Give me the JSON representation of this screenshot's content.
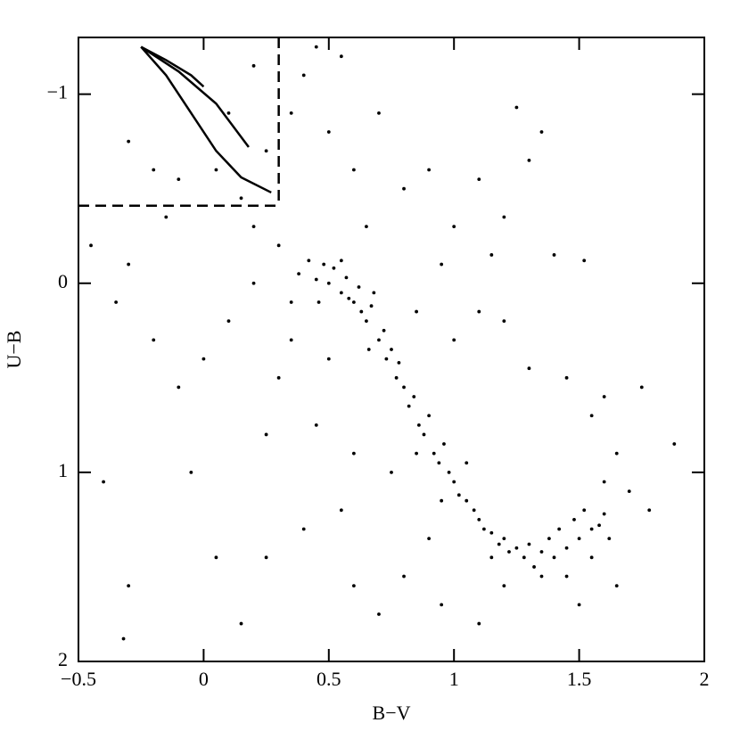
{
  "chart_data": {
    "type": "scatter",
    "x_label": "B−V",
    "y_label": "U−B",
    "xlim": [
      -0.5,
      2
    ],
    "ylim": [
      -1.3,
      2
    ],
    "y_inverted": true,
    "xticks": [
      {
        "value": -0.5,
        "label": "−0.5"
      },
      0,
      0.5,
      1,
      1.5,
      2
    ],
    "yticks": [
      {
        "value": -1,
        "label": "−1"
      },
      0,
      1,
      2
    ],
    "series": [
      {
        "color": "#000000",
        "x": [
          0.38,
          0.42,
          0.45,
          0.48,
          0.5,
          0.52,
          0.55,
          0.57,
          0.6,
          0.62,
          0.63,
          0.65,
          0.67,
          0.7,
          0.72,
          0.73,
          0.75,
          0.77,
          0.8,
          0.82,
          0.84,
          0.86,
          0.88,
          0.9,
          0.92,
          0.94,
          0.96,
          0.98,
          1.0,
          1.02,
          1.05,
          1.08,
          1.1,
          1.12,
          1.15,
          1.18,
          1.2,
          1.22,
          1.25,
          1.28,
          1.3,
          1.32,
          1.35,
          1.38,
          1.4,
          1.42,
          1.45,
          1.48,
          1.5,
          1.52,
          1.55,
          1.58,
          1.6,
          1.62,
          0.55,
          0.58,
          0.68,
          0.78,
          0.85,
          1.05,
          1.15,
          1.35,
          1.45,
          1.55,
          0.46,
          0.66,
          0.95
        ],
        "values": [
          -0.05,
          -0.12,
          -0.02,
          -0.1,
          0.0,
          -0.08,
          0.05,
          -0.03,
          0.1,
          0.02,
          0.15,
          0.2,
          0.12,
          0.3,
          0.25,
          0.4,
          0.35,
          0.5,
          0.55,
          0.65,
          0.6,
          0.75,
          0.8,
          0.7,
          0.9,
          0.95,
          0.85,
          1.0,
          1.05,
          1.12,
          1.15,
          1.2,
          1.25,
          1.3,
          1.32,
          1.38,
          1.35,
          1.42,
          1.4,
          1.45,
          1.38,
          1.5,
          1.42,
          1.35,
          1.45,
          1.3,
          1.4,
          1.25,
          1.35,
          1.2,
          1.3,
          1.28,
          1.22,
          1.35,
          -0.12,
          0.08,
          0.05,
          0.42,
          0.9,
          0.95,
          1.45,
          1.55,
          1.55,
          1.45,
          0.1,
          0.35,
          1.15
        ]
      },
      {
        "color": "#000000",
        "x": [
          -0.3,
          -0.2,
          -0.1,
          0.05,
          0.15,
          0.25,
          0.35,
          0.4,
          0.5,
          0.6,
          0.7,
          0.8,
          0.9,
          1.0,
          1.1,
          1.2,
          1.3,
          1.25,
          1.35,
          0.45,
          0.55,
          0.2,
          0.1,
          -0.45,
          -0.35,
          -0.3,
          -0.2,
          -0.1,
          0.0,
          0.1,
          0.2,
          0.3,
          0.35,
          0.25,
          -0.05,
          -0.4,
          -0.3,
          -0.32,
          0.05,
          0.15,
          0.25,
          0.4,
          0.55,
          0.6,
          0.7,
          0.8,
          0.95,
          1.1,
          1.2,
          1.5,
          1.65,
          1.7,
          1.78,
          1.88,
          1.55,
          1.45,
          1.6,
          1.3,
          1.2,
          1.1,
          1.0,
          1.4,
          1.52,
          1.15,
          0.95,
          0.85,
          0.5,
          0.45,
          0.35,
          0.6,
          0.75,
          0.9,
          1.6,
          0.65,
          0.2,
          -0.15,
          0.3,
          1.65,
          1.75
        ],
        "values": [
          -0.75,
          -0.6,
          -0.55,
          -0.6,
          -0.45,
          -0.7,
          -0.9,
          -1.1,
          -0.8,
          -0.6,
          -0.9,
          -0.5,
          -0.6,
          -0.3,
          -0.55,
          -0.35,
          -0.65,
          -0.93,
          -0.8,
          -1.25,
          -1.2,
          -1.15,
          -0.9,
          -0.2,
          0.1,
          -0.1,
          0.3,
          0.55,
          0.4,
          0.2,
          0.0,
          0.5,
          0.3,
          0.8,
          1.0,
          1.05,
          1.6,
          1.88,
          1.45,
          1.8,
          1.45,
          1.3,
          1.2,
          1.6,
          1.75,
          1.55,
          1.7,
          1.8,
          1.6,
          1.7,
          1.6,
          1.1,
          1.2,
          0.85,
          0.7,
          0.5,
          0.6,
          0.45,
          0.2,
          0.15,
          0.3,
          -0.15,
          -0.12,
          -0.15,
          -0.1,
          0.15,
          0.4,
          0.75,
          0.1,
          0.9,
          1.0,
          1.35,
          1.05,
          -0.3,
          -0.3,
          -0.35,
          -0.2,
          0.9,
          0.55
        ]
      }
    ],
    "curves": [
      {
        "x": [
          -0.25,
          -0.15,
          -0.05,
          0.0
        ],
        "values": [
          -1.25,
          -1.18,
          -1.1,
          -1.04
        ]
      },
      {
        "x": [
          -0.25,
          -0.1,
          0.05,
          0.18
        ],
        "values": [
          -1.25,
          -1.12,
          -0.95,
          -0.72
        ]
      },
      {
        "x": [
          -0.25,
          -0.15,
          -0.05,
          0.05,
          0.15,
          0.27
        ],
        "values": [
          -1.25,
          -1.1,
          -0.9,
          -0.7,
          -0.56,
          -0.48
        ]
      }
    ],
    "dashed_lines": {
      "x": 0.3,
      "y": -0.41
    }
  }
}
